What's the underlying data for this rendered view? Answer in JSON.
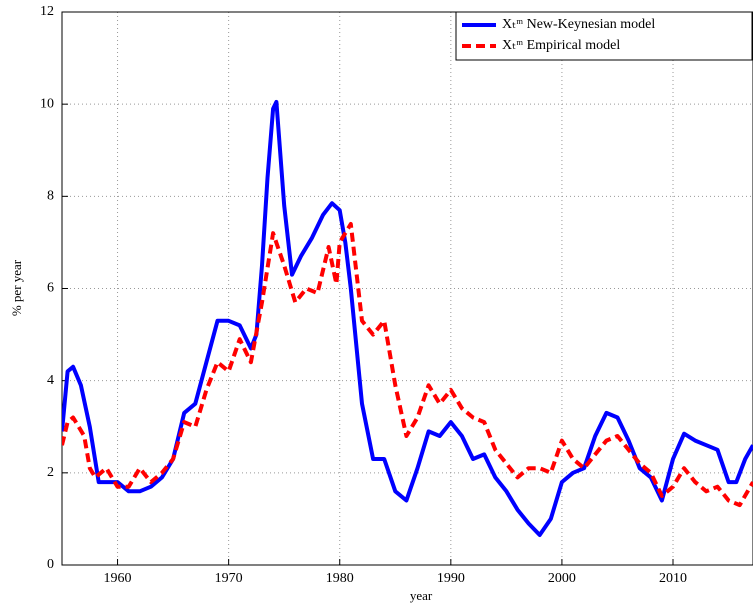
{
  "chart_data": {
    "type": "line",
    "xlabel": "year",
    "ylabel": "% per year",
    "xlim": [
      1955,
      2017.2
    ],
    "ylim": [
      0,
      12
    ],
    "xticks": [
      1960,
      1970,
      1980,
      1990,
      2000,
      2010
    ],
    "yticks": [
      0,
      2,
      4,
      6,
      8,
      10,
      12
    ],
    "grid": true,
    "legend": "upper right",
    "series": [
      {
        "name": "Xₜᵐ New-Keynesian model",
        "color": "#0000ff",
        "dash": "solid",
        "x": [
          1955,
          1955.5,
          1956,
          1956.7,
          1957.5,
          1958.3,
          1959,
          1960,
          1961,
          1962,
          1963,
          1964,
          1965,
          1966,
          1967,
          1968,
          1969,
          1970,
          1971,
          1972,
          1972.5,
          1973,
          1973.5,
          1974,
          1974.3,
          1975,
          1975.7,
          1976.5,
          1977.5,
          1978.5,
          1979.3,
          1980,
          1980.5,
          1981,
          1982,
          1983,
          1984,
          1985,
          1986,
          1987,
          1988,
          1989,
          1990,
          1991,
          1992,
          1993,
          1994,
          1995,
          1996,
          1997,
          1998,
          1999,
          2000,
          2001,
          2002,
          2003,
          2004,
          2005,
          2006,
          2007,
          2008,
          2009,
          2010,
          2011,
          2012,
          2013,
          2014,
          2015,
          2015.7,
          2016.5,
          2017.2
        ],
        "values": [
          2.9,
          4.2,
          4.3,
          3.9,
          3.0,
          1.8,
          1.8,
          1.8,
          1.6,
          1.6,
          1.7,
          1.9,
          2.3,
          3.3,
          3.5,
          4.4,
          5.3,
          5.3,
          5.2,
          4.7,
          5.0,
          6.5,
          8.4,
          9.9,
          10.05,
          7.8,
          6.3,
          6.7,
          7.1,
          7.6,
          7.85,
          7.7,
          7.0,
          6.0,
          3.5,
          2.3,
          2.3,
          1.6,
          1.4,
          2.1,
          2.9,
          2.8,
          3.1,
          2.8,
          2.3,
          2.4,
          1.9,
          1.6,
          1.2,
          0.9,
          0.65,
          1.0,
          1.8,
          2.0,
          2.1,
          2.8,
          3.3,
          3.2,
          2.7,
          2.1,
          1.9,
          1.4,
          2.3,
          2.85,
          2.7,
          2.6,
          2.5,
          1.8,
          1.8,
          2.3,
          2.6
        ]
      },
      {
        "name": "Xₜᵐ Empirical model",
        "color": "#ff0000",
        "dash": "dashed",
        "x": [
          1955,
          1955.5,
          1956,
          1957,
          1957.5,
          1958,
          1959,
          1960,
          1961,
          1962,
          1963,
          1964,
          1965,
          1966,
          1967,
          1968,
          1969,
          1970,
          1971,
          1972,
          1973,
          1974,
          1975,
          1976,
          1977,
          1978,
          1979,
          1979.7,
          1980,
          1981,
          1982,
          1983,
          1984,
          1985,
          1986,
          1987,
          1988,
          1989,
          1990,
          1991,
          1992,
          1993,
          1994,
          1995,
          1996,
          1997,
          1998,
          1999,
          2000,
          2001,
          2002,
          2003,
          2004,
          2005,
          2006,
          2007,
          2008,
          2009,
          2010,
          2011,
          2012,
          2013,
          2014,
          2015,
          2016,
          2017.2
        ],
        "values": [
          2.6,
          3.1,
          3.2,
          2.8,
          2.1,
          1.9,
          2.1,
          1.7,
          1.7,
          2.1,
          1.8,
          2.0,
          2.3,
          3.1,
          3.0,
          3.8,
          4.4,
          4.2,
          4.9,
          4.4,
          5.7,
          7.2,
          6.5,
          5.7,
          6.0,
          5.9,
          6.9,
          6.1,
          7.0,
          7.4,
          5.3,
          5.0,
          5.3,
          3.9,
          2.8,
          3.2,
          3.9,
          3.5,
          3.8,
          3.4,
          3.2,
          3.1,
          2.5,
          2.2,
          1.9,
          2.1,
          2.1,
          2.0,
          2.7,
          2.3,
          2.1,
          2.4,
          2.7,
          2.8,
          2.5,
          2.2,
          2.0,
          1.5,
          1.7,
          2.1,
          1.8,
          1.6,
          1.7,
          1.4,
          1.3,
          1.8
        ]
      }
    ]
  }
}
